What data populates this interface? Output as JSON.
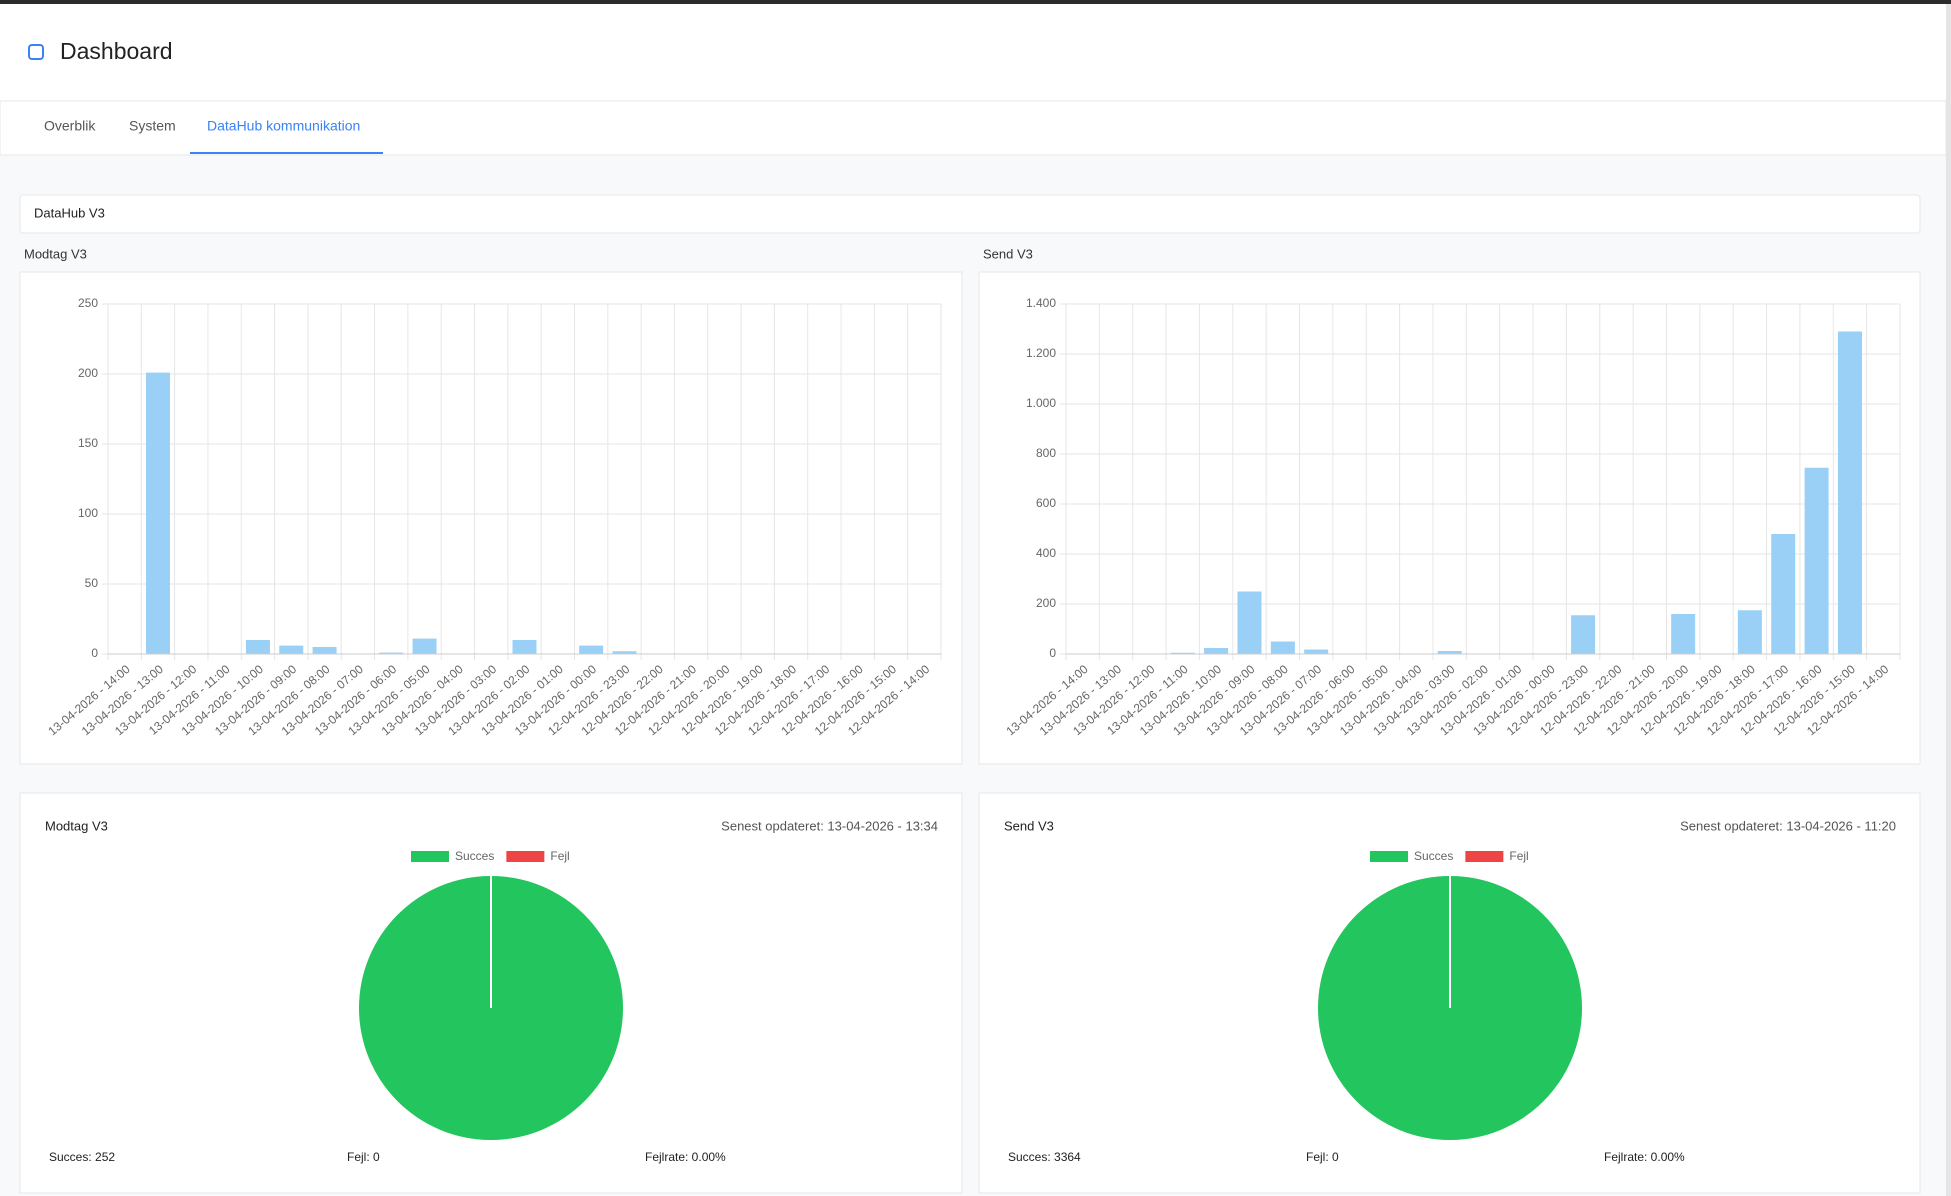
{
  "header": {
    "title": "Dashboard"
  },
  "tabs": [
    "Overblik",
    "System",
    "DataHub kommunikation"
  ],
  "section": {
    "title": "DataHub V3"
  },
  "chart_data": [
    {
      "type": "bar",
      "title": "Modtag V3",
      "categories": [
        "13-04-2026 - 14:00",
        "13-04-2026 - 13:00",
        "13-04-2026 - 12:00",
        "13-04-2026 - 11:00",
        "13-04-2026 - 10:00",
        "13-04-2026 - 09:00",
        "13-04-2026 - 08:00",
        "13-04-2026 - 07:00",
        "13-04-2026 - 06:00",
        "13-04-2026 - 05:00",
        "13-04-2026 - 04:00",
        "13-04-2026 - 03:00",
        "13-04-2026 - 02:00",
        "13-04-2026 - 01:00",
        "13-04-2026 - 00:00",
        "12-04-2026 - 23:00",
        "12-04-2026 - 22:00",
        "12-04-2026 - 21:00",
        "12-04-2026 - 20:00",
        "12-04-2026 - 19:00",
        "12-04-2026 - 18:00",
        "12-04-2026 - 17:00",
        "12-04-2026 - 16:00",
        "12-04-2026 - 15:00",
        "12-04-2026 - 14:00"
      ],
      "values": [
        0,
        201,
        0,
        0,
        10,
        6,
        5,
        0,
        1,
        11,
        0,
        0,
        10,
        0,
        6,
        2,
        0,
        0,
        0,
        0,
        0,
        0,
        0,
        0,
        0
      ],
      "color": "#9ad0f5",
      "ylim": [
        0,
        250
      ],
      "yticks": [
        0,
        50,
        100,
        150,
        200,
        250
      ],
      "grid": true
    },
    {
      "type": "bar",
      "title": "Send V3",
      "categories": [
        "13-04-2026 - 14:00",
        "13-04-2026 - 13:00",
        "13-04-2026 - 12:00",
        "13-04-2026 - 11:00",
        "13-04-2026 - 10:00",
        "13-04-2026 - 09:00",
        "13-04-2026 - 08:00",
        "13-04-2026 - 07:00",
        "13-04-2026 - 06:00",
        "13-04-2026 - 05:00",
        "13-04-2026 - 04:00",
        "13-04-2026 - 03:00",
        "13-04-2026 - 02:00",
        "13-04-2026 - 01:00",
        "13-04-2026 - 00:00",
        "12-04-2026 - 23:00",
        "12-04-2026 - 22:00",
        "12-04-2026 - 21:00",
        "12-04-2026 - 20:00",
        "12-04-2026 - 19:00",
        "12-04-2026 - 18:00",
        "12-04-2026 - 17:00",
        "12-04-2026 - 16:00",
        "12-04-2026 - 15:00",
        "12-04-2026 - 14:00"
      ],
      "values": [
        0,
        0,
        0,
        5,
        24,
        250,
        50,
        18,
        0,
        0,
        0,
        12,
        0,
        0,
        0,
        155,
        0,
        0,
        160,
        0,
        175,
        480,
        745,
        1290,
        0
      ],
      "color": "#9ad0f5",
      "ylim": [
        0,
        1400
      ],
      "yticks": [
        0,
        200,
        400,
        600,
        800,
        {
          "value": 1000,
          "label": "1.000"
        },
        {
          "value": 1200,
          "label": "1.200"
        },
        {
          "value": 1400,
          "label": "1.400"
        }
      ],
      "grid": true
    },
    {
      "type": "pie",
      "title": "Modtag V3",
      "subtitle": "Senest opdateret: 13-04-2026 - 13:34",
      "categories": [
        "Succes",
        "Fejl"
      ],
      "values": [
        252,
        0
      ],
      "colors": [
        "#22c55e",
        "#ef4444"
      ],
      "annotations": [
        "Succes: 252",
        "Fejl: 0",
        "Fejlrate: 0.00%"
      ]
    },
    {
      "type": "pie",
      "title": "Send V3",
      "subtitle": "Senest opdateret: 13-04-2026 - 11:20",
      "categories": [
        "Succes",
        "Fejl"
      ],
      "values": [
        3364,
        0
      ],
      "colors": [
        "#22c55e",
        "#ef4444"
      ],
      "annotations": [
        "Succes: 3364",
        "Fejl: 0",
        "Fejlrate: 0.00%"
      ]
    }
  ]
}
